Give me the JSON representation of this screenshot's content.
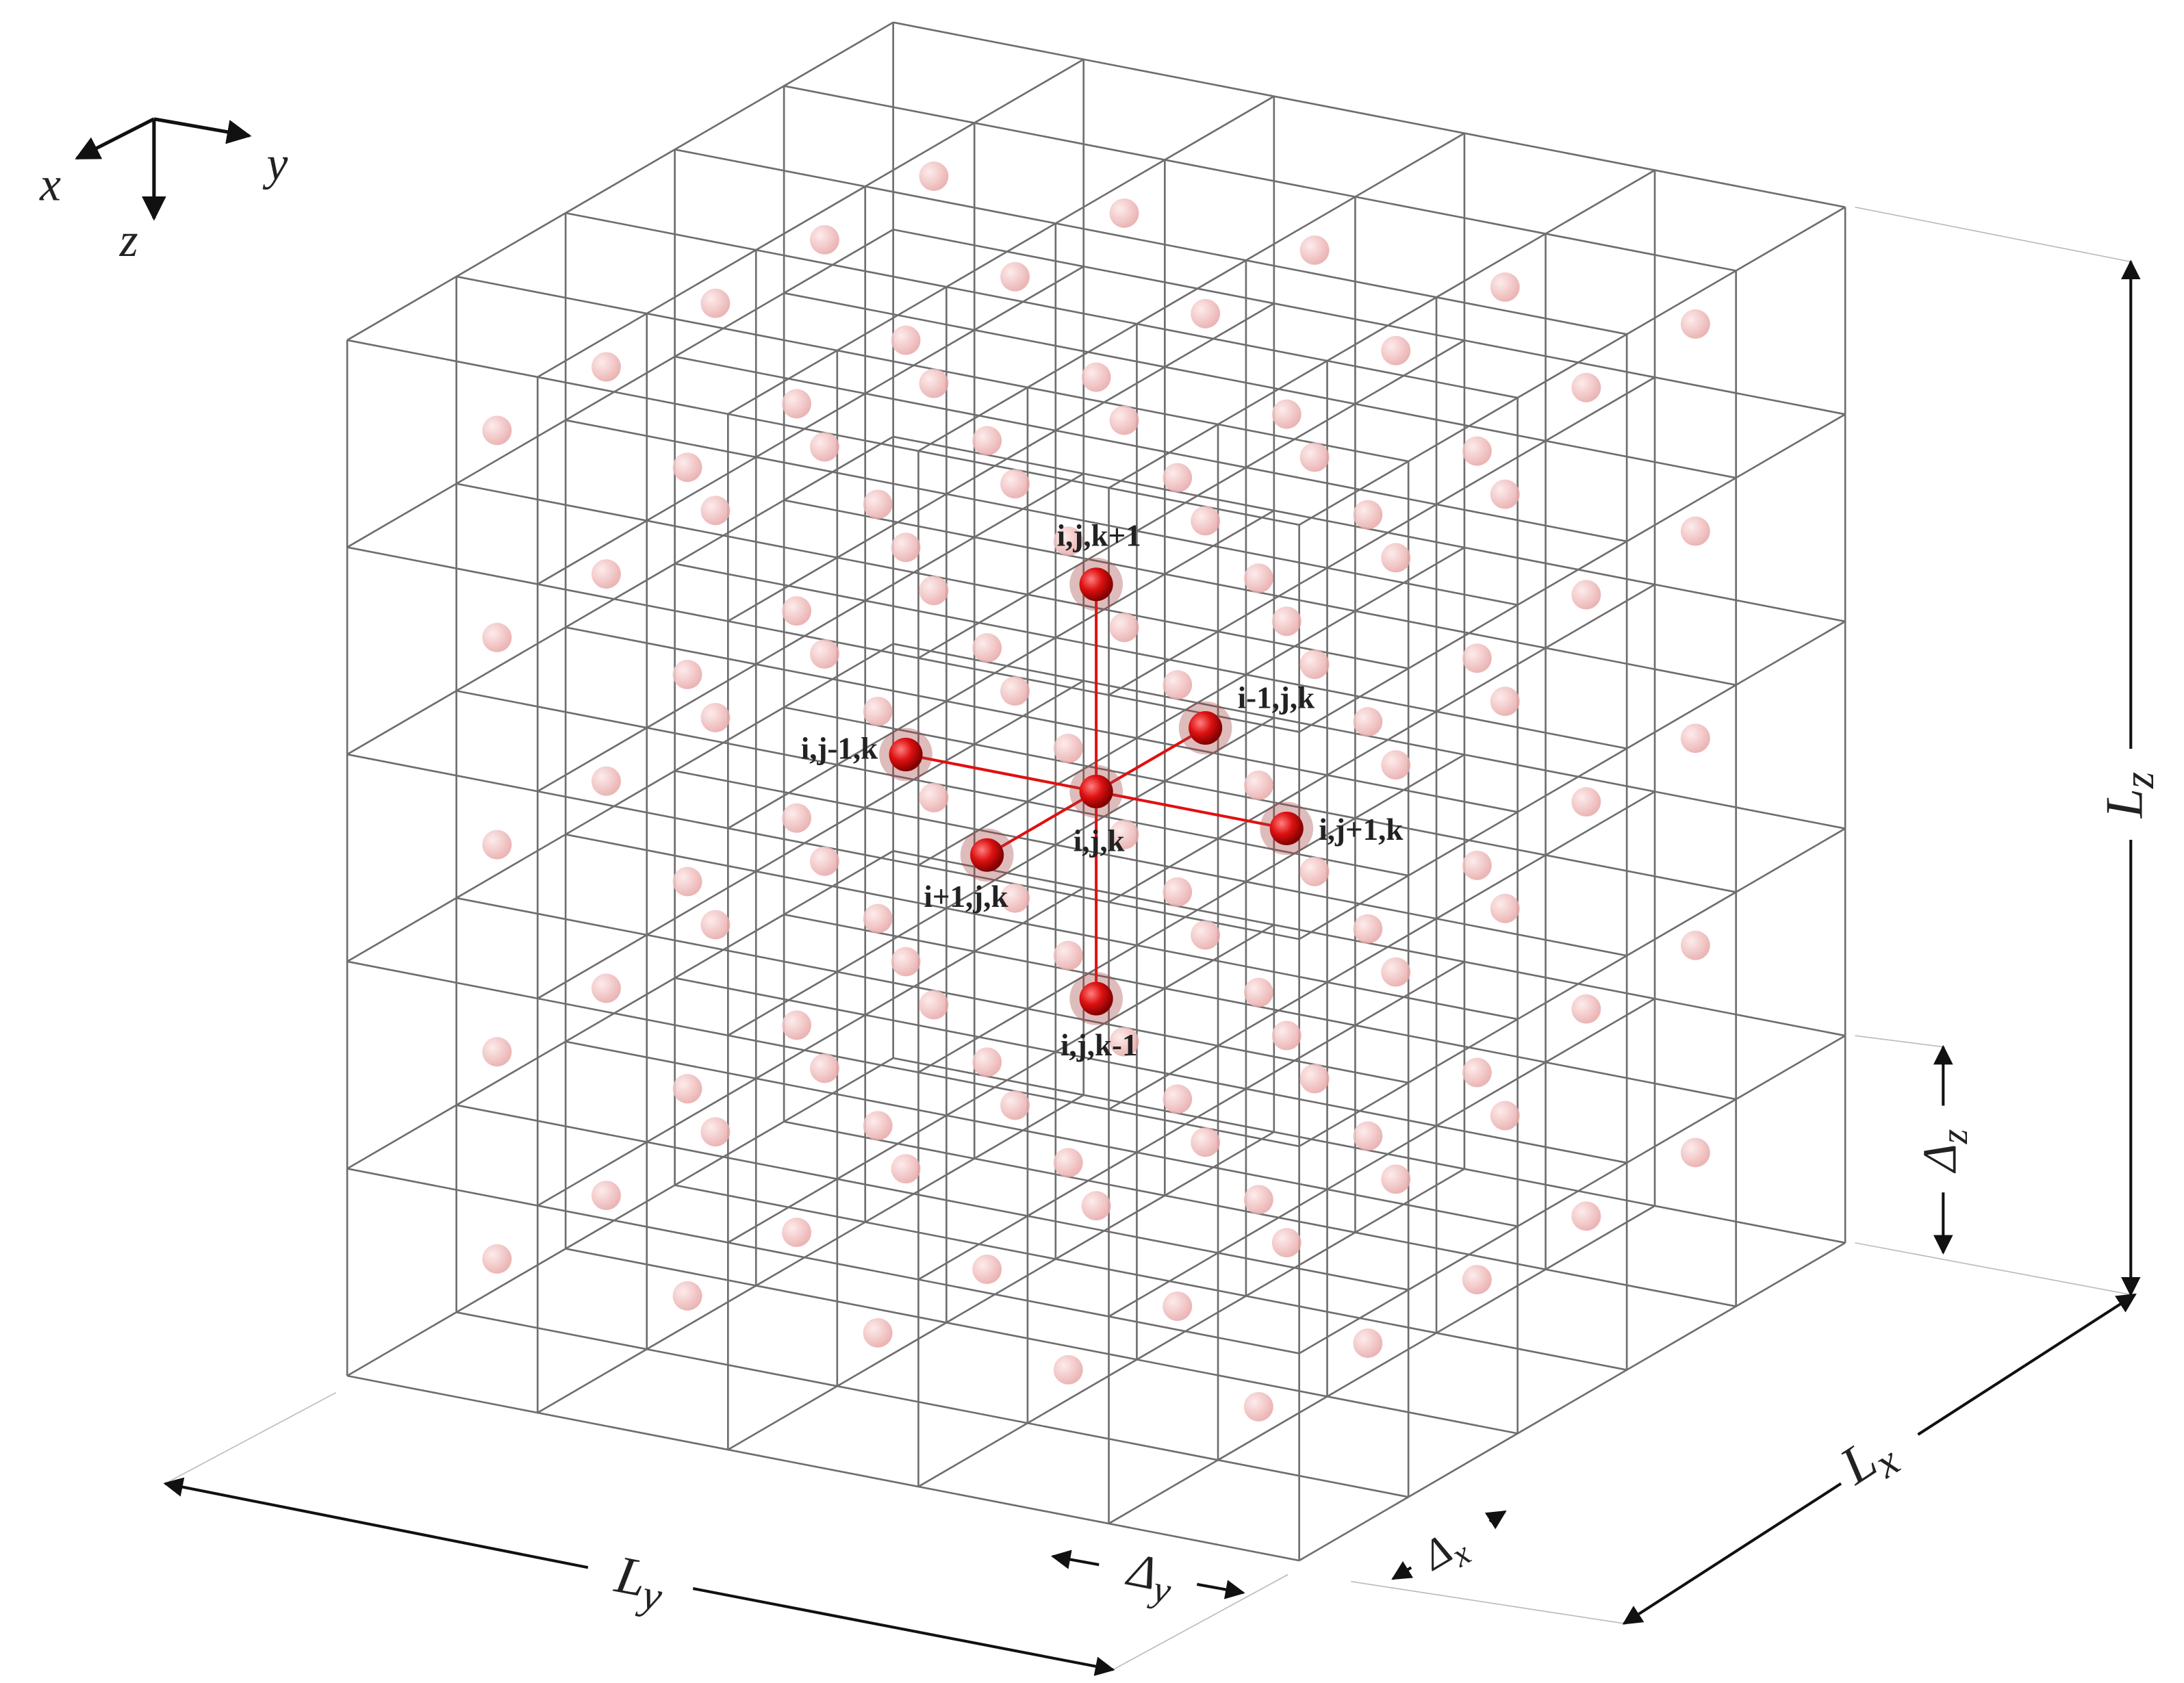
{
  "axes": {
    "x": "x",
    "y": "y",
    "z": "z"
  },
  "dimensions": {
    "Lx": {
      "main": "L",
      "sub": "x"
    },
    "Ly": {
      "main": "L",
      "sub": "y"
    },
    "Lz": {
      "main": "L",
      "sub": "z"
    },
    "dx": {
      "main": "Δ",
      "sub": "x"
    },
    "dy": {
      "main": "Δ",
      "sub": "y"
    },
    "dz": {
      "main": "Δ",
      "sub": "z"
    }
  },
  "nodes": {
    "center": "i,j,k",
    "k_plus": "i,j,k+1",
    "k_minus": "i,j,k-1",
    "j_minus": "i,j-1,k",
    "j_plus": "i,j+1,k",
    "i_minus": "i-1,j,k",
    "i_plus": "i+1,j,k"
  }
}
